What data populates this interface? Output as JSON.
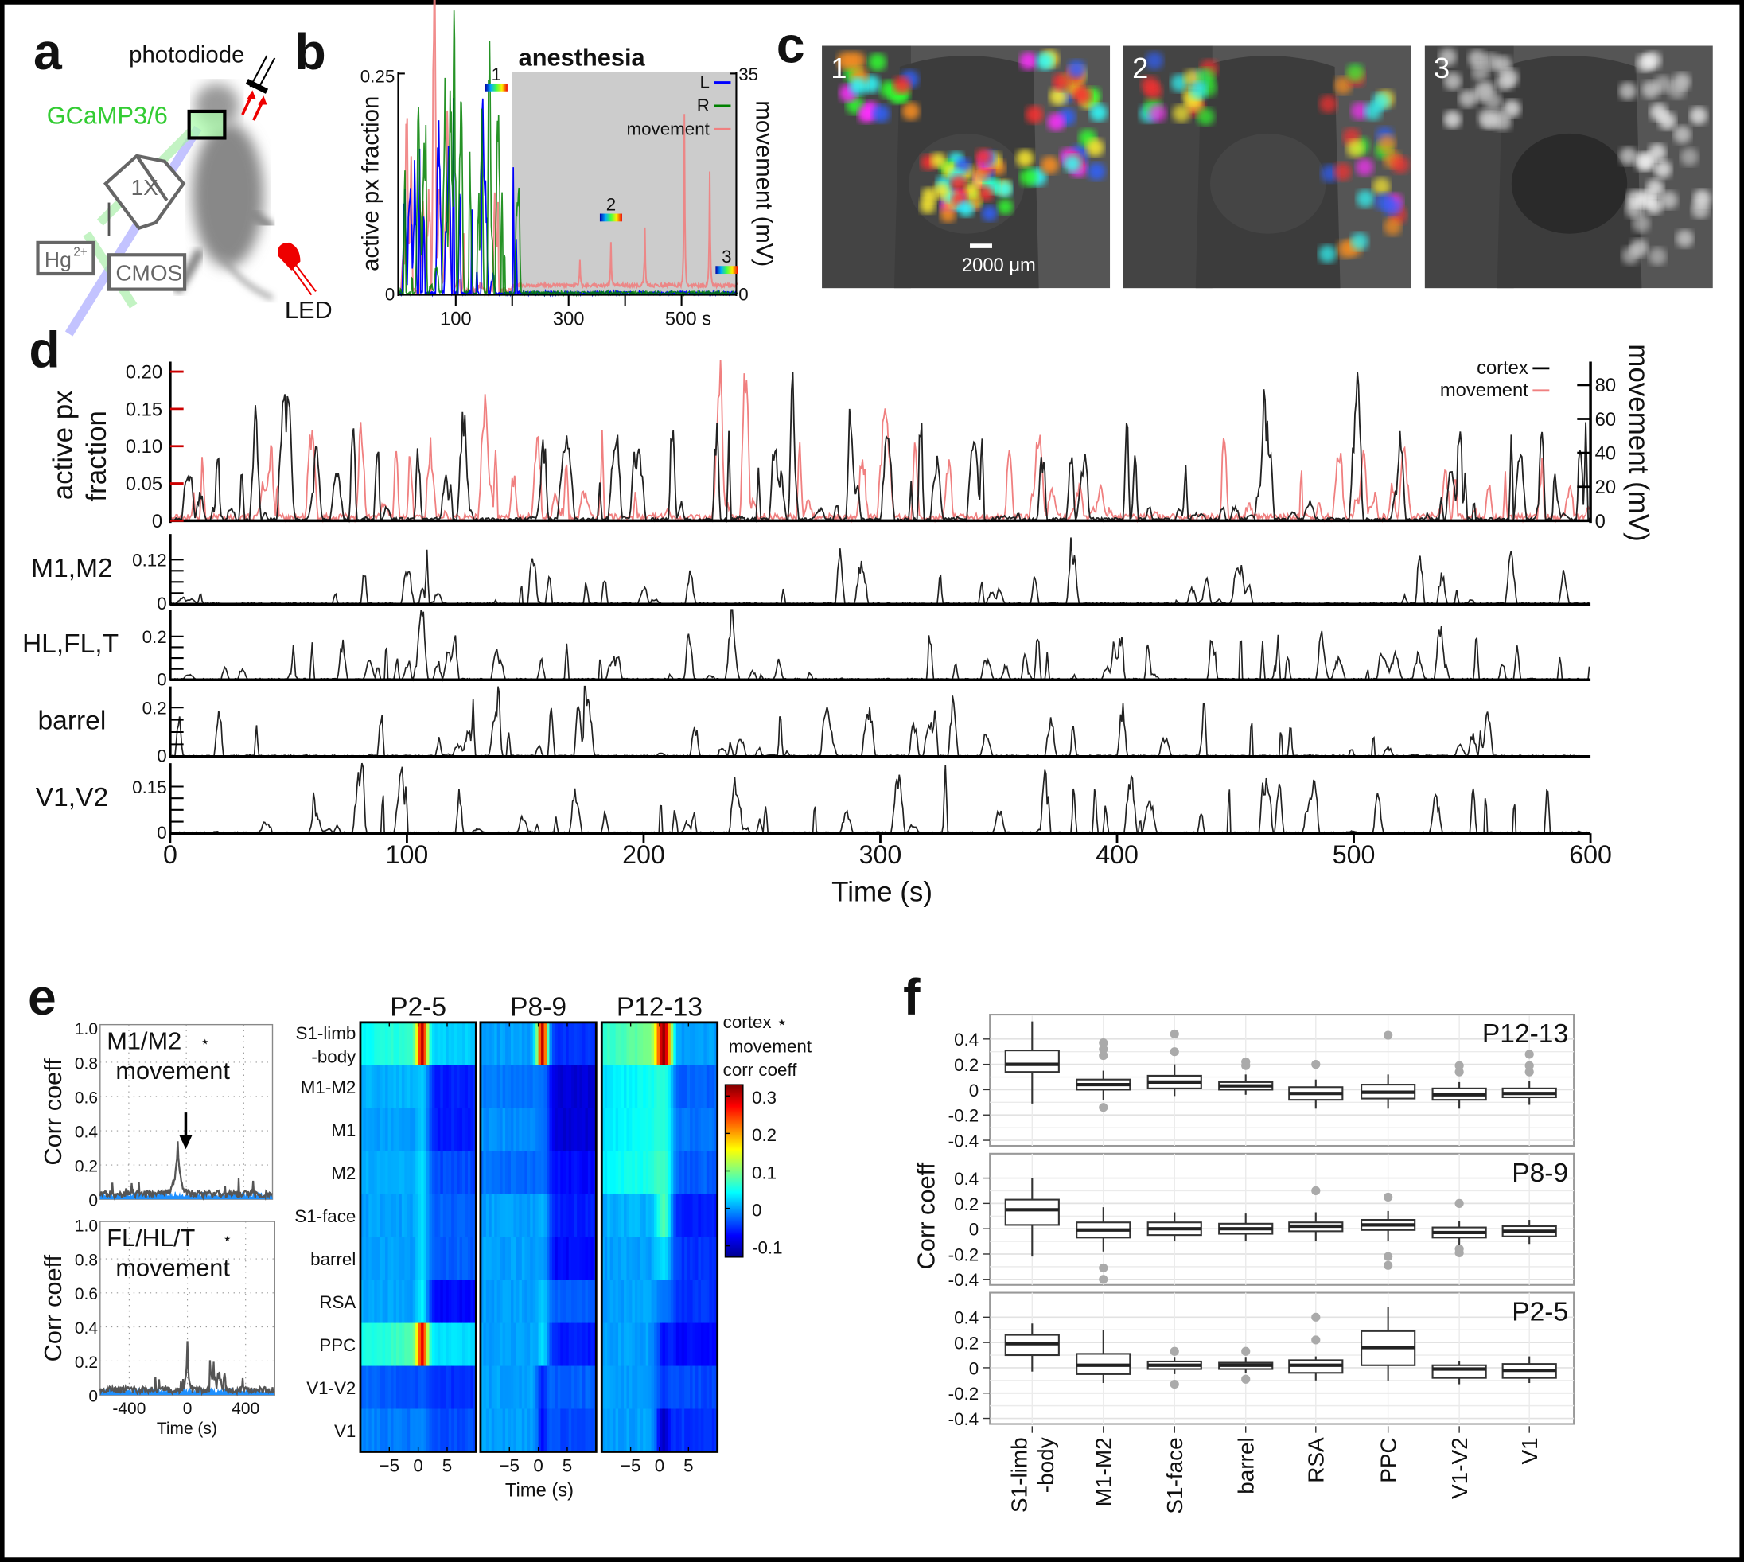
{
  "panel_labels": {
    "a": "a",
    "b": "b",
    "c": "c",
    "d": "d",
    "e": "e",
    "f": "f"
  },
  "panel_a": {
    "photodiode": "photodiode",
    "indicator": "GCaMP3/6",
    "lens": "1X",
    "lamp": "Hg",
    "lamp_sup": "2+",
    "camera": "CMOS",
    "led": "LED",
    "colors": {
      "indicator": "#33cc33",
      "excitation": "#9999ff",
      "emission": "#99ee99",
      "led": "#ff0000"
    }
  },
  "panel_c": {
    "image_labels": [
      "1",
      "2",
      "3"
    ],
    "scale_bar": "2000 μm"
  },
  "chart_data": [
    {
      "id": "b",
      "type": "line",
      "title": "anesthesia",
      "ylabel": "active px fraction",
      "y2label": "movement (mV)",
      "yticks": [
        "0.25",
        "0"
      ],
      "y2ticks": [
        "35",
        "0"
      ],
      "xticks": [
        "100",
        "300",
        "500 s"
      ],
      "xtick_values": [
        100,
        300,
        500
      ],
      "xlim": [
        0,
        600
      ],
      "ylim": [
        0,
        0.25
      ],
      "y2lim": [
        0,
        35
      ],
      "anesthesia_start": 200,
      "legend": [
        {
          "name": "L",
          "color": "#0000ff"
        },
        {
          "name": "R",
          "color": "#008000"
        },
        {
          "name": "movement",
          "color": "#f08080"
        }
      ],
      "markers": [
        {
          "label": "1",
          "time": 172
        },
        {
          "label": "2",
          "time": 375
        },
        {
          "label": "3",
          "time": 580
        }
      ],
      "movement_peaks_after_anesthesia": [
        [
          320,
          4
        ],
        [
          375,
          7
        ],
        [
          435,
          9
        ],
        [
          505,
          27
        ],
        [
          550,
          18
        ]
      ]
    },
    {
      "id": "d",
      "type": "line",
      "ylabel": [
        "active px",
        "fraction"
      ],
      "y2label": "movement (mV)",
      "yticks": [
        "0.20",
        "0.15",
        "0.10",
        "0.05",
        "0"
      ],
      "ytick_values": [
        0.2,
        0.15,
        0.1,
        0.05,
        0
      ],
      "y2ticks": [
        "80",
        "60",
        "40",
        "20",
        "0"
      ],
      "y2tick_values": [
        80,
        60,
        40,
        20,
        0
      ],
      "ylim": [
        0,
        0.2
      ],
      "y2lim": [
        0,
        80
      ],
      "legend": [
        {
          "name": "cortex",
          "color": "#000000"
        },
        {
          "name": "movement",
          "color": "#f08080"
        }
      ],
      "subplots": [
        {
          "label": "M1,M2",
          "ytick": "0.12",
          "ymax": 0.12
        },
        {
          "label": "HL,FL,T",
          "ytick": "0.2",
          "ymax": 0.2
        },
        {
          "label": "barrel",
          "ytick": "0.2",
          "ymax": 0.2
        },
        {
          "label": "V1,V2",
          "ytick": "0.15",
          "ymax": 0.15
        }
      ],
      "subplot_zero": "0",
      "xticks": [
        "0",
        "100",
        "200",
        "300",
        "400",
        "500",
        "600"
      ],
      "xtick_values": [
        0,
        100,
        200,
        300,
        400,
        500,
        600
      ],
      "xlim": [
        0,
        600
      ],
      "xlabel": "Time (s)"
    },
    {
      "id": "e-line",
      "type": "line",
      "panels": [
        {
          "title": "M1/M2",
          "star": "⋆",
          "subtitle": "movement",
          "peak_lag": -60,
          "peak": 0.33
        },
        {
          "title": "FL/HL/T",
          "star": "⋆",
          "subtitle": "movement",
          "peak_lag": 0,
          "peak": 0.32
        }
      ],
      "ylabel": "Corr coeff",
      "yticks": [
        "1.0",
        "0.8",
        "0.6",
        "0.4",
        "0.2",
        "0"
      ],
      "ytick_values": [
        1,
        0.8,
        0.6,
        0.4,
        0.2,
        0
      ],
      "xticks": [
        "-400",
        "0",
        "400"
      ],
      "xtick_values": [
        -400,
        0,
        400
      ],
      "xlim": [
        -600,
        600
      ],
      "xlabel": "Time (s)",
      "colors": {
        "trace": "#555555",
        "shuffle": "#1e90ff"
      }
    },
    {
      "id": "e-heatmap",
      "type": "heatmap",
      "columns": [
        "P2-5",
        "P8-9",
        "P12-13"
      ],
      "rows": [
        "S1-limb -body",
        "M1-M2",
        "M1",
        "M2",
        "S1-face",
        "barrel",
        "RSA",
        "PPC",
        "V1-V2",
        "V1"
      ],
      "row_label_lines": [
        [
          "S1-limb",
          "-body"
        ],
        [
          "M1-M2"
        ],
        [
          "M1"
        ],
        [
          "M2"
        ],
        [
          "S1-face"
        ],
        [
          "barrel"
        ],
        [
          "RSA"
        ],
        [
          "PPC"
        ],
        [
          "V1-V2"
        ],
        [
          "V1"
        ]
      ],
      "xticks": [
        "−5",
        "0",
        "5"
      ],
      "xtick_values": [
        -5,
        0,
        5
      ],
      "xlim": [
        -10,
        10
      ],
      "xlabel": "Time (s)",
      "colorbar_title": [
        "cortex ⋆",
        "movement",
        "corr coeff"
      ],
      "colorbar_ticks": [
        "0.3",
        "0.2",
        "0.1",
        "0",
        "-0.1"
      ],
      "colorbar_tick_values": [
        0.3,
        0.2,
        0.1,
        0,
        -0.1
      ],
      "clim": [
        -0.13,
        0.33
      ],
      "colormap": "jet",
      "profile_fields": [
        "before_lag0",
        "peak_near_lag0",
        "after_lag0"
      ],
      "values": [
        [
          [
            0.07,
            0.3,
            0.02
          ],
          [
            0.01,
            0.02,
            -0.06
          ],
          [
            0.0,
            0.02,
            -0.06
          ],
          [
            0.01,
            0.03,
            -0.04
          ],
          [
            0.0,
            0.03,
            -0.03
          ],
          [
            0.0,
            0.03,
            -0.03
          ],
          [
            0.0,
            0.04,
            -0.07
          ],
          [
            0.08,
            0.28,
            0.03
          ],
          [
            -0.04,
            -0.03,
            -0.05
          ],
          [
            -0.02,
            -0.01,
            -0.04
          ]
        ],
        [
          [
            0.0,
            0.3,
            -0.05
          ],
          [
            -0.02,
            -0.02,
            -0.09
          ],
          [
            -0.01,
            -0.02,
            -0.09
          ],
          [
            -0.03,
            -0.02,
            -0.07
          ],
          [
            0.0,
            0.01,
            -0.06
          ],
          [
            0.0,
            0.0,
            -0.07
          ],
          [
            0.0,
            0.02,
            -0.03
          ],
          [
            0.0,
            0.03,
            -0.06
          ],
          [
            0.0,
            -0.06,
            -0.03
          ],
          [
            0.0,
            -0.07,
            -0.04
          ]
        ],
        [
          [
            0.1,
            0.32,
            0.0
          ],
          [
            0.05,
            0.06,
            -0.03
          ],
          [
            0.05,
            0.06,
            -0.02
          ],
          [
            0.06,
            0.07,
            -0.03
          ],
          [
            0.01,
            0.08,
            -0.06
          ],
          [
            0.0,
            0.03,
            -0.05
          ],
          [
            0.0,
            -0.02,
            -0.05
          ],
          [
            0.0,
            -0.07,
            -0.07
          ],
          [
            0.0,
            -0.05,
            -0.04
          ],
          [
            0.0,
            -0.1,
            -0.05
          ]
        ]
      ]
    },
    {
      "id": "f",
      "type": "box",
      "ylabel": "Corr coeff",
      "categories": [
        "S1-limb -body",
        "M1-M2",
        "S1-face",
        "barrel",
        "RSA",
        "PPC",
        "V1-V2",
        "V1"
      ],
      "category_label_lines": [
        [
          "S1-limb",
          "-body"
        ],
        [
          "M1-M2"
        ],
        [
          "S1-face"
        ],
        [
          "barrel"
        ],
        [
          "RSA"
        ],
        [
          "PPC"
        ],
        [
          "V1-V2"
        ],
        [
          "V1"
        ]
      ],
      "yticks": [
        "0.4",
        "0.2",
        "0",
        "-0.2",
        "-0.4"
      ],
      "ytick_values": [
        0.4,
        0.2,
        0,
        -0.2,
        -0.4
      ],
      "ylim": [
        -0.45,
        0.5
      ],
      "box_fields": [
        "median",
        "q1",
        "q3",
        "whisker_low",
        "whisker_high",
        "outliers"
      ],
      "panels": [
        {
          "name": "P12-13",
          "boxes": [
            [
              0.2,
              0.14,
              0.31,
              -0.11,
              0.54,
              []
            ],
            [
              0.04,
              0.0,
              0.08,
              -0.08,
              0.15,
              [
                0.37,
                0.32,
                0.27,
                -0.14
              ]
            ],
            [
              0.06,
              0.01,
              0.11,
              -0.05,
              0.2,
              [
                0.44,
                0.3
              ]
            ],
            [
              0.03,
              0.0,
              0.06,
              -0.04,
              0.12,
              [
                0.22,
                0.19
              ]
            ],
            [
              -0.03,
              -0.08,
              0.02,
              -0.15,
              0.08,
              [
                0.2
              ]
            ],
            [
              -0.02,
              -0.07,
              0.04,
              -0.15,
              0.12,
              [
                0.43
              ]
            ],
            [
              -0.04,
              -0.08,
              0.01,
              -0.15,
              0.06,
              [
                0.19,
                0.14
              ]
            ],
            [
              -0.03,
              -0.06,
              0.01,
              -0.12,
              0.07,
              [
                0.28,
                0.19,
                0.14
              ]
            ]
          ]
        },
        {
          "name": "P8-9",
          "boxes": [
            [
              0.15,
              0.03,
              0.23,
              -0.22,
              0.4,
              []
            ],
            [
              -0.01,
              -0.07,
              0.05,
              -0.18,
              0.17,
              [
                -0.31,
                -0.4
              ]
            ],
            [
              0.0,
              -0.05,
              0.05,
              -0.1,
              0.13,
              []
            ],
            [
              0.0,
              -0.04,
              0.04,
              -0.1,
              0.12,
              []
            ],
            [
              0.02,
              -0.02,
              0.05,
              -0.1,
              0.13,
              [
                0.3
              ]
            ],
            [
              0.03,
              -0.01,
              0.07,
              -0.1,
              0.14,
              [
                0.25,
                -0.22,
                -0.29
              ]
            ],
            [
              -0.03,
              -0.07,
              0.01,
              -0.13,
              0.06,
              [
                0.2,
                -0.16,
                -0.19
              ]
            ],
            [
              -0.02,
              -0.06,
              0.02,
              -0.12,
              0.07,
              []
            ]
          ]
        },
        {
          "name": "P2-5",
          "boxes": [
            [
              0.19,
              0.1,
              0.26,
              -0.03,
              0.35,
              []
            ],
            [
              0.02,
              -0.05,
              0.11,
              -0.12,
              0.3,
              []
            ],
            [
              0.02,
              -0.01,
              0.05,
              -0.05,
              0.08,
              [
                0.13,
                -0.13
              ]
            ],
            [
              0.02,
              -0.01,
              0.04,
              -0.04,
              0.08,
              [
                0.13,
                -0.09
              ]
            ],
            [
              0.02,
              -0.04,
              0.06,
              -0.1,
              0.09,
              [
                0.4,
                0.22
              ]
            ],
            [
              0.16,
              0.02,
              0.29,
              -0.1,
              0.48,
              []
            ],
            [
              -0.01,
              -0.08,
              0.02,
              -0.13,
              0.05,
              []
            ],
            [
              -0.02,
              -0.08,
              0.03,
              -0.12,
              0.09,
              []
            ]
          ]
        }
      ],
      "colors": {
        "outlier": "#aaaaaa",
        "box": "#ffffff",
        "grid": "#ebebeb"
      }
    }
  ]
}
